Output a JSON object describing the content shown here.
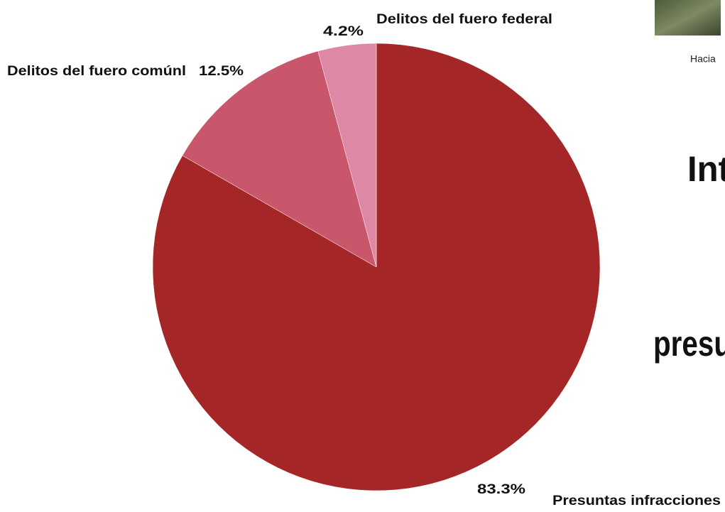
{
  "chart_data": {
    "type": "pie",
    "categories": [
      "Presuntas infracciones",
      "Delitos del fuero comúnl",
      "Delitos del fuero federal"
    ],
    "values": [
      83.3,
      12.5,
      4.2
    ],
    "value_labels": [
      "83.3%",
      "12.5%",
      "4.2%"
    ],
    "colors": [
      "#a52626",
      "#c9566a",
      "#de88a6"
    ]
  },
  "page": {
    "caption": "Hacia",
    "headings": [
      "Int",
      "presu"
    ]
  }
}
